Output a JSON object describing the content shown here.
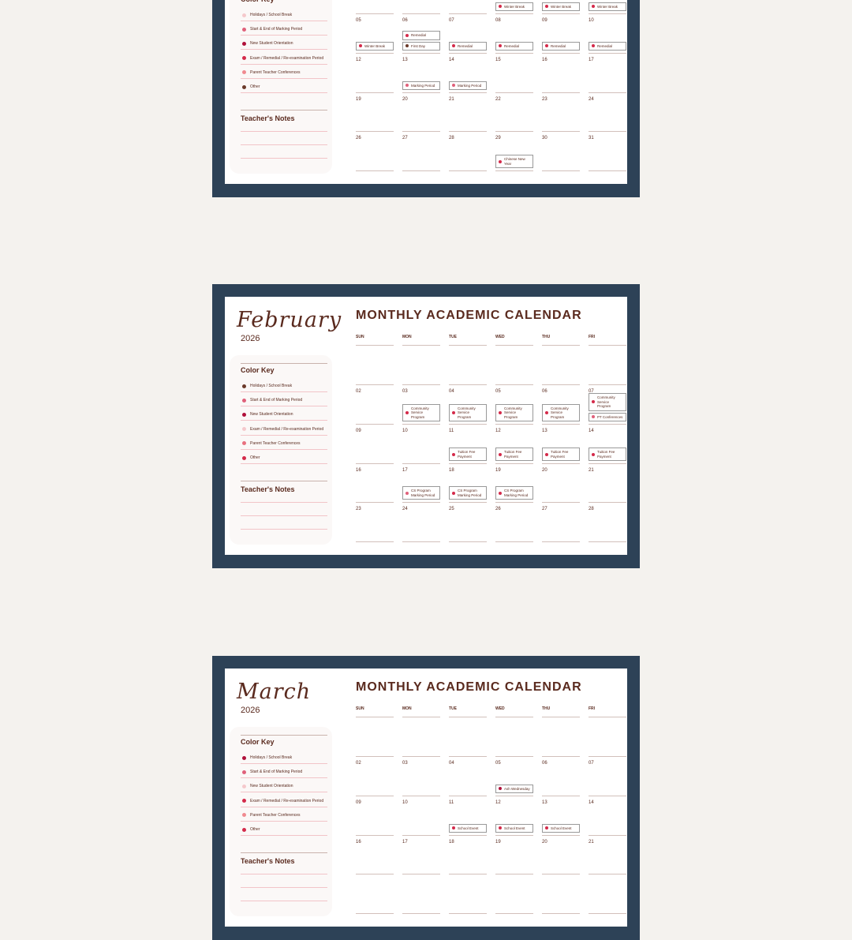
{
  "colors": {
    "background": "#f4f2ee",
    "frame": "#2d4257",
    "text": "#5a2a1e"
  },
  "calendar_title": "MONTHLY ACADEMIC CALENDAR",
  "weekdays": [
    "SUN",
    "MON",
    "TUE",
    "WED",
    "THU",
    "FRI"
  ],
  "color_key_title": "Color Key",
  "notes_title": "Teacher's Notes",
  "key_labels": [
    "Holidays / School Break",
    "Start & End of Marking Period",
    "New Student Orientation",
    "Exam / Remedial / Re-examination Period",
    "Parent Teacher Conferences",
    "Other"
  ],
  "cards": [
    {
      "month": "",
      "year": "",
      "key_colors": [
        "#f5c9cc",
        "#e0607a",
        "#b0103a",
        "#d42a4a",
        "#f08a90",
        "#6b3a2a"
      ],
      "rows": [
        {
          "dates": [
            "",
            "",
            "",
            "",
            "",
            ""
          ],
          "events": [
            [],
            [],
            [],
            [
              {
                "label": "Winter Break",
                "color": "#d42a4a"
              }
            ],
            [
              {
                "label": "Winter Break",
                "color": "#d42a4a"
              }
            ],
            [
              {
                "label": "Winter Break",
                "color": "#d42a4a"
              }
            ]
          ]
        },
        {
          "dates": [
            "05",
            "06",
            "07",
            "08",
            "09",
            "10"
          ],
          "events": [
            [
              {
                "label": "Winter Break",
                "color": "#d42a4a"
              }
            ],
            [
              {
                "label": "Remedial",
                "color": "#d42a4a"
              },
              {
                "label": "First Day",
                "color": "#6b3a2a"
              }
            ],
            [
              {
                "label": "Remedial",
                "color": "#d42a4a"
              }
            ],
            [
              {
                "label": "Remedial",
                "color": "#d42a4a"
              }
            ],
            [
              {
                "label": "Remedial",
                "color": "#d42a4a"
              }
            ],
            [
              {
                "label": "Remedial",
                "color": "#d42a4a"
              }
            ]
          ]
        },
        {
          "dates": [
            "12",
            "13",
            "14",
            "15",
            "16",
            "17"
          ],
          "events": [
            [],
            [
              {
                "label": "Marking Period",
                "color": "#e0607a"
              }
            ],
            [
              {
                "label": "Marking Period",
                "color": "#e0607a"
              }
            ],
            [],
            [],
            []
          ]
        },
        {
          "dates": [
            "19",
            "20",
            "21",
            "22",
            "23",
            "24"
          ],
          "events": [
            [],
            [],
            [],
            [],
            [],
            []
          ]
        },
        {
          "dates": [
            "26",
            "27",
            "28",
            "29",
            "30",
            "31"
          ],
          "events": [
            [],
            [],
            [],
            [
              {
                "label": "Chinese New Year",
                "color": "#d42a4a"
              }
            ],
            [],
            []
          ]
        }
      ]
    },
    {
      "month": "February",
      "year": "2026",
      "key_colors": [
        "#6b3a2a",
        "#e0607a",
        "#b0103a",
        "#f5c9cc",
        "#e8707e",
        "#d42a4a"
      ],
      "rows": [
        {
          "dates": [
            "",
            "",
            "",
            "",
            "",
            ""
          ],
          "events": [
            [],
            [],
            [],
            [],
            [],
            []
          ]
        },
        {
          "dates": [
            "02",
            "03",
            "04",
            "05",
            "06",
            "07"
          ],
          "events": [
            [],
            [
              {
                "label": "Community Service Program",
                "color": "#d42a4a"
              }
            ],
            [
              {
                "label": "Community Service Program",
                "color": "#d42a4a"
              }
            ],
            [
              {
                "label": "Community Service Program",
                "color": "#d42a4a"
              }
            ],
            [
              {
                "label": "Community Service Program",
                "color": "#d42a4a"
              }
            ],
            [
              {
                "label": "Community Service Program",
                "color": "#d42a4a"
              },
              {
                "label": "PT Conferences",
                "color": "#e0607a"
              }
            ]
          ]
        },
        {
          "dates": [
            "09",
            "10",
            "11",
            "12",
            "13",
            "14"
          ],
          "events": [
            [],
            [],
            [
              {
                "label": "Tuition Fee Payment",
                "color": "#d42a4a"
              }
            ],
            [
              {
                "label": "Tuition Fee Payment",
                "color": "#d42a4a"
              }
            ],
            [
              {
                "label": "Tuition Fee Payment",
                "color": "#d42a4a"
              }
            ],
            [
              {
                "label": "Tuition Fee Payment",
                "color": "#d42a4a"
              }
            ]
          ]
        },
        {
          "dates": [
            "16",
            "17",
            "18",
            "19",
            "20",
            "21"
          ],
          "events": [
            [],
            [
              {
                "label": "CS Program Marking Period",
                "color": "#e0607a"
              }
            ],
            [
              {
                "label": "CS Program Marking Period",
                "color": "#d42a4a"
              }
            ],
            [
              {
                "label": "CS Program Marking Period",
                "color": "#d42a4a"
              }
            ],
            [],
            []
          ]
        },
        {
          "dates": [
            "23",
            "24",
            "25",
            "26",
            "27",
            "28"
          ],
          "events": [
            [],
            [],
            [],
            [],
            [],
            []
          ]
        }
      ]
    },
    {
      "month": "March",
      "year": "2026",
      "key_colors": [
        "#b0103a",
        "#e0607a",
        "#f5c9cc",
        "#d42a4a",
        "#f08a90",
        "#d42a4a"
      ],
      "rows": [
        {
          "dates": [
            "",
            "",
            "",
            "",
            "",
            ""
          ],
          "events": [
            [],
            [],
            [],
            [],
            [],
            []
          ]
        },
        {
          "dates": [
            "02",
            "03",
            "04",
            "05",
            "06",
            "07"
          ],
          "events": [
            [],
            [],
            [],
            [
              {
                "label": "Ash Wednesday",
                "color": "#b0103a"
              }
            ],
            [],
            []
          ]
        },
        {
          "dates": [
            "09",
            "10",
            "11",
            "12",
            "13",
            "14"
          ],
          "events": [
            [],
            [],
            [
              {
                "label": "School Event",
                "color": "#d42a4a"
              }
            ],
            [
              {
                "label": "School Event",
                "color": "#d42a4a"
              }
            ],
            [
              {
                "label": "School Event",
                "color": "#d42a4a"
              }
            ],
            []
          ]
        },
        {
          "dates": [
            "16",
            "17",
            "18",
            "19",
            "20",
            "21"
          ],
          "events": [
            [],
            [],
            [],
            [],
            [],
            []
          ]
        },
        {
          "dates": [
            "",
            "",
            "",
            "",
            "",
            ""
          ],
          "events": [
            [],
            [],
            [],
            [],
            [],
            []
          ]
        }
      ]
    }
  ]
}
